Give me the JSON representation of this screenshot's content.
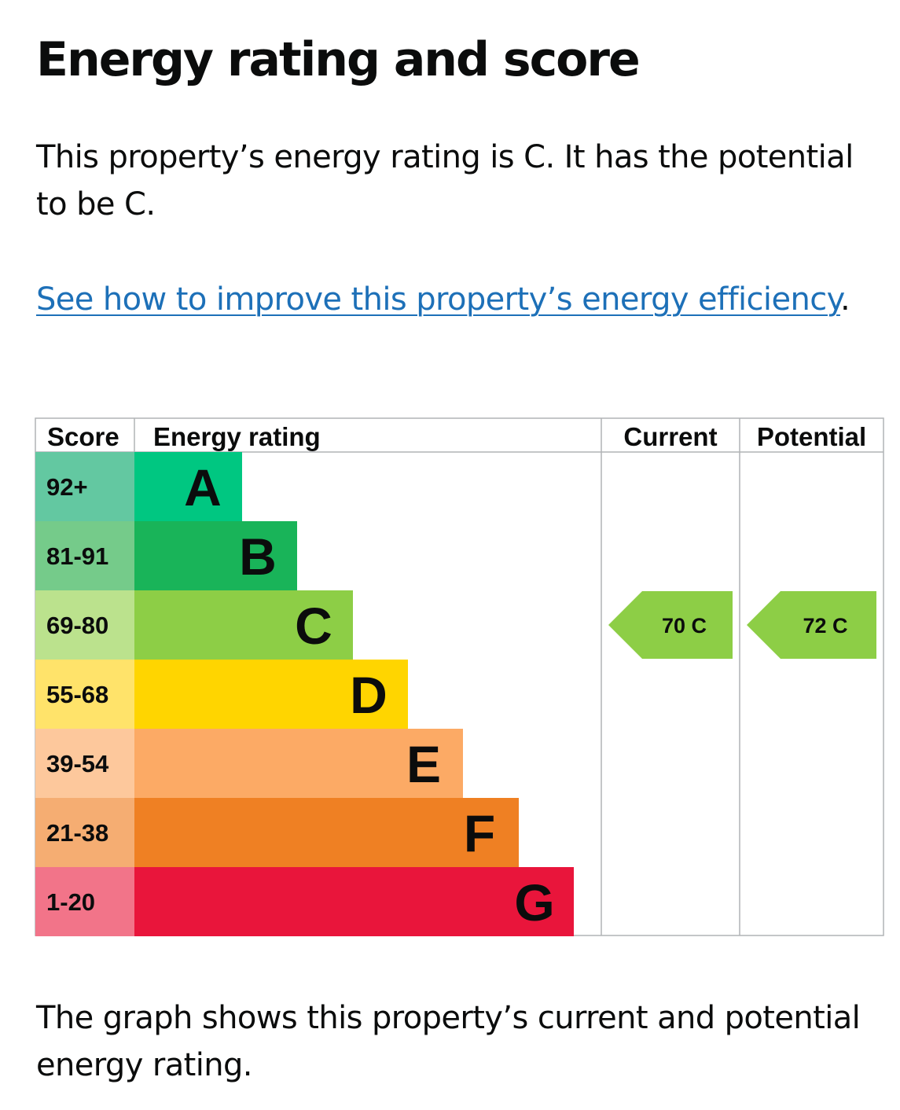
{
  "page": {
    "title": "Energy rating and score",
    "intro": "This property’s energy rating is C. It has the potential to be C.",
    "improve_link": "See how to improve this property’s energy efficiency",
    "improve_link_suffix": ".",
    "footer": "The graph shows this property’s current and potential energy rating."
  },
  "chart_data": {
    "type": "table",
    "headers": {
      "score": "Score",
      "rating": "Energy rating",
      "current": "Current",
      "potential": "Potential"
    },
    "bands": [
      {
        "letter": "A",
        "score": "92+",
        "color": "#00c781",
        "score_color": "#63c8a1"
      },
      {
        "letter": "B",
        "score": "81-91",
        "color": "#19b459",
        "score_color": "#75cb8a"
      },
      {
        "letter": "C",
        "score": "69-80",
        "color": "#8dce46",
        "score_color": "#bbe28d"
      },
      {
        "letter": "D",
        "score": "55-68",
        "color": "#ffd500",
        "score_color": "#ffe36a"
      },
      {
        "letter": "E",
        "score": "39-54",
        "color": "#fcaa65",
        "score_color": "#fdc89c"
      },
      {
        "letter": "F",
        "score": "21-38",
        "color": "#ef8023",
        "score_color": "#f5ad72"
      },
      {
        "letter": "G",
        "score": "1-20",
        "color": "#e9153b",
        "score_color": "#f27489"
      }
    ],
    "current": {
      "score": 70,
      "rating": "C",
      "label": "70  C"
    },
    "potential": {
      "score": 72,
      "rating": "C",
      "label": "72  C"
    },
    "border_color": "#b1b4b6"
  }
}
